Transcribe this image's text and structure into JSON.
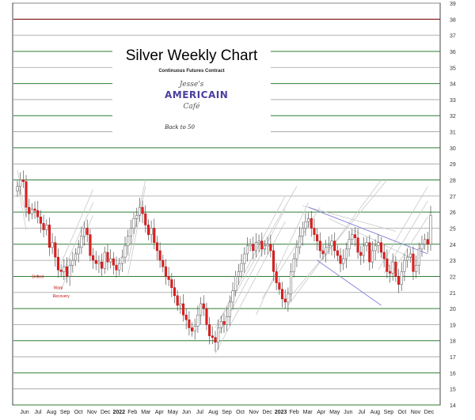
{
  "title": "Silver Weekly Chart",
  "subtitle": "Continuous Futures Contract",
  "logo": {
    "top": "Jesse's",
    "middle": "AMERICAIN",
    "bottom": "Café"
  },
  "note": "Back to 50",
  "colors": {
    "up_candle": "#ffffff",
    "down_candle": "#e02020",
    "grid_major": "#2e7d32",
    "grid_minor": "#9aa19a",
    "resistance": "#7a1010",
    "channel": "#c8c8c8",
    "wedge": "#8080d8"
  },
  "chart_data": {
    "type": "candlestick",
    "ylim": [
      14,
      39
    ],
    "y_ticks": [
      14,
      15,
      16,
      17,
      18,
      19,
      20,
      21,
      22,
      23,
      24,
      25,
      26,
      27,
      28,
      29,
      30,
      31,
      32,
      33,
      34,
      35,
      36,
      37,
      38,
      39
    ],
    "x_tick_labels": [
      "Jun",
      "Jul",
      "Aug",
      "Sep",
      "Oct",
      "Nov",
      "Dec",
      "2022",
      "Feb",
      "Mar",
      "Apr",
      "May",
      "Jun",
      "Jul",
      "Aug",
      "Sep",
      "Oct",
      "Nov",
      "Dec",
      "2023",
      "Feb",
      "Mar",
      "Apr",
      "May",
      "Jun",
      "Jul",
      "Aug",
      "Sep",
      "Oct",
      "Nov",
      "Dec"
    ],
    "resistance_level": 38,
    "annotations": [
      "Drifted",
      "Warp",
      "Recovery"
    ],
    "close": [
      27.6,
      28.0,
      27.9,
      26.3,
      25.9,
      26.2,
      26.1,
      25.7,
      25.3,
      24.9,
      25.2,
      23.8,
      24.1,
      23.2,
      22.4,
      22.3,
      22.6,
      22.0,
      22.7,
      23.0,
      23.4,
      23.8,
      24.5,
      25.0,
      24.6,
      23.3,
      23.0,
      22.8,
      22.9,
      22.5,
      23.5,
      22.9,
      23.1,
      22.7,
      22.4,
      22.8,
      23.2,
      23.9,
      24.5,
      25.0,
      25.6,
      25.8,
      26.3,
      25.9,
      25.2,
      24.6,
      25.0,
      24.1,
      23.6,
      23.0,
      22.6,
      22.0,
      21.8,
      21.3,
      20.8,
      20.2,
      20.3,
      19.6,
      19.3,
      18.8,
      18.6,
      18.9,
      19.6,
      20.3,
      20.0,
      19.0,
      18.3,
      18.2,
      17.9,
      18.8,
      19.2,
      19.0,
      19.5,
      20.4,
      21.1,
      22.0,
      22.3,
      22.8,
      23.4,
      23.9,
      24.0,
      23.6,
      24.1,
      24.2,
      23.7,
      23.9,
      24.0,
      23.6,
      22.3,
      21.6,
      21.2,
      20.6,
      20.4,
      20.9,
      22.3,
      23.1,
      23.8,
      24.5,
      25.0,
      25.4,
      25.6,
      25.0,
      24.6,
      24.2,
      23.6,
      23.4,
      23.8,
      23.9,
      24.2,
      23.6,
      23.3,
      22.8,
      23.1,
      23.7,
      24.3,
      24.6,
      24.4,
      23.5,
      23.3,
      23.9,
      24.1,
      22.9,
      23.6,
      23.9,
      24.1,
      23.5,
      23.1,
      22.3,
      22.2,
      22.9,
      22.0,
      21.5,
      22.3,
      23.0,
      23.2,
      23.4,
      22.3,
      22.7,
      23.7,
      24.0,
      24.3,
      24.0,
      25.8
    ],
    "series": [
      {
        "name": "",
        "values": []
      }
    ]
  }
}
